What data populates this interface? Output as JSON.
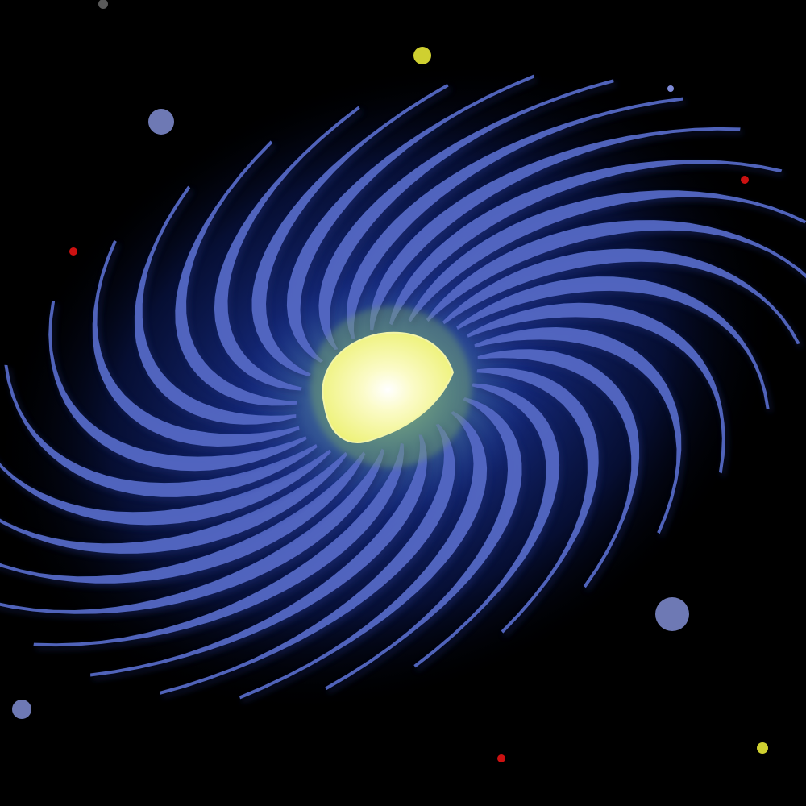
{
  "scene": {
    "subject": "spiral-galaxy",
    "background_color": "#000000",
    "halo_color": "#13288a",
    "arm_color": "#5468c4",
    "arm_shadow_color": "#1c2c6e",
    "arm_count": 30,
    "core_color": "#f6f795",
    "core_highlight_color": "#ffffff",
    "core_glow_color": "#7fb060"
  },
  "stars": [
    {
      "kind": "planet",
      "color": "#6e79b4"
    },
    {
      "kind": "planet",
      "color": "#6e79b4"
    },
    {
      "kind": "planet",
      "color": "#6e79b4"
    },
    {
      "kind": "dot",
      "color": "#cfd030"
    },
    {
      "kind": "dot",
      "color": "#cfd030"
    },
    {
      "kind": "dot",
      "color": "#cc1111"
    },
    {
      "kind": "dot",
      "color": "#cc1111"
    },
    {
      "kind": "dot",
      "color": "#cc1111"
    },
    {
      "kind": "dot",
      "color": "#7f8bd8"
    },
    {
      "kind": "dot",
      "color": "#5a5a5a"
    }
  ]
}
